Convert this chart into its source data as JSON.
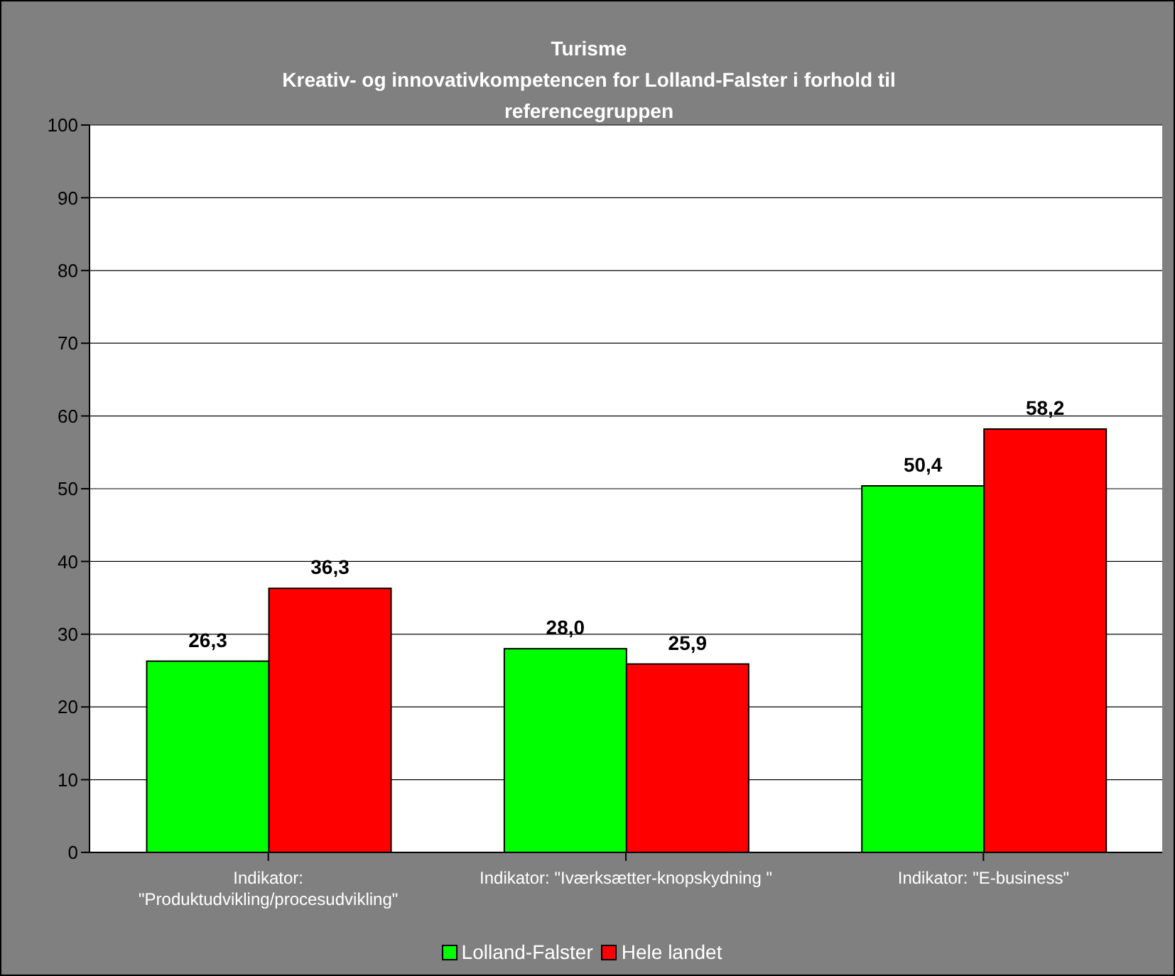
{
  "chart_data": {
    "type": "bar",
    "title": "Turisme",
    "subtitle": "Kreativ- og innovativkompetencen for Lolland-Falster i forhold til referencegruppen",
    "categories": [
      "Indikator: \"Produktudvikling/procesudvikling\"",
      "Indikator: \"Iværksætter-knopskydning \"",
      "Indikator: \"E-business\""
    ],
    "series": [
      {
        "name": "Lolland-Falster",
        "color": "#00ff00",
        "values": [
          26.3,
          28.0,
          50.4
        ],
        "value_labels": [
          "26,3",
          "28,0",
          "50,4"
        ]
      },
      {
        "name": "Hele landet",
        "color": "#ff0000",
        "values": [
          36.3,
          25.9,
          58.2
        ],
        "value_labels": [
          "36,3",
          "25,9",
          "58,2"
        ]
      }
    ],
    "ylim": [
      0,
      100
    ],
    "yticks": [
      0,
      10,
      20,
      30,
      40,
      50,
      60,
      70,
      80,
      90,
      100
    ],
    "grid": "y",
    "legend": "bottom"
  }
}
